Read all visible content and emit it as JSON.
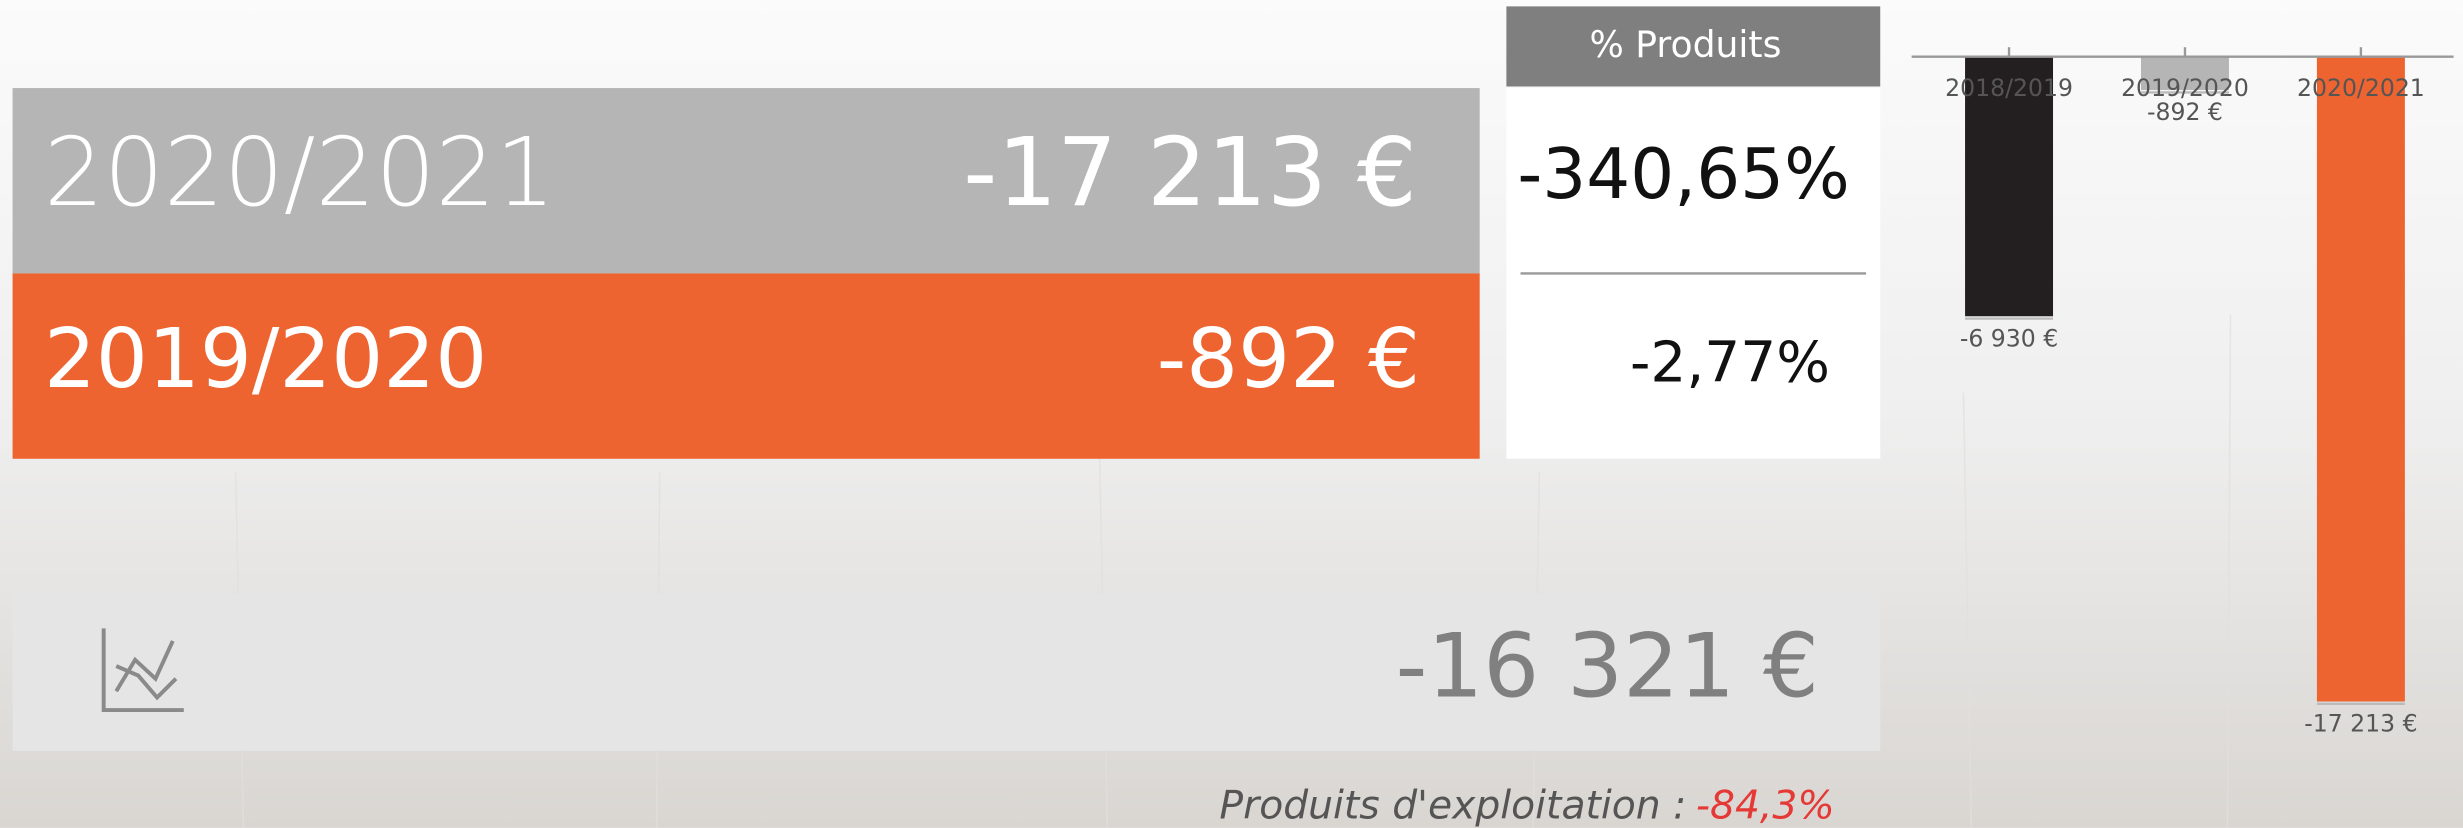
{
  "summary": {
    "rows": [
      {
        "period": "2020/2021",
        "amount": "-17 213 €"
      },
      {
        "period": "2019/2020",
        "amount": "-892 €"
      }
    ]
  },
  "products_share": {
    "header": "% Produits",
    "values": [
      "-340,65%",
      "-2,77%"
    ]
  },
  "difference": {
    "amount": "-16 321 €"
  },
  "footer": {
    "label": "Produits d'exploitation :",
    "value": "-84,3%"
  },
  "chart_data": {
    "type": "bar",
    "categories": [
      "2018/2019",
      "2019/2020",
      "2020/2021"
    ],
    "values": [
      -6930,
      -892,
      -17213
    ],
    "value_labels": [
      "-6 930 €",
      "-892 €",
      "-17 213 €"
    ],
    "colors": [
      "#231f20",
      "#b5b5b5",
      "#ee6431"
    ],
    "ylim": [
      -20000,
      0
    ]
  }
}
